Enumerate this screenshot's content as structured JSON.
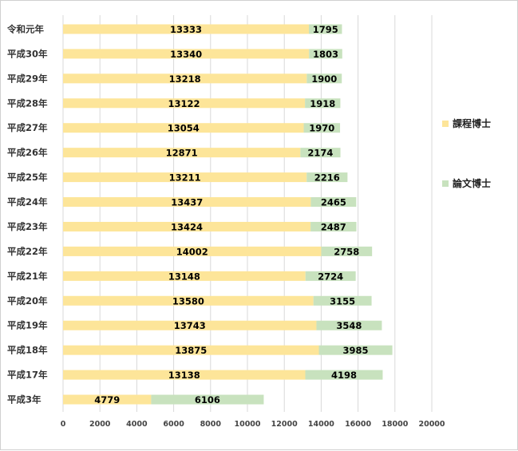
{
  "chart_data": {
    "type": "bar",
    "orientation": "horizontal",
    "stacked": true,
    "categories": [
      "令和元年",
      "平成30年",
      "平成29年",
      "平成28年",
      "平成27年",
      "平成26年",
      "平成25年",
      "平成24年",
      "平成23年",
      "平成22年",
      "平成21年",
      "平成20年",
      "平成19年",
      "平成18年",
      "平成17年",
      "平成3年"
    ],
    "series": [
      {
        "name": "課程博士",
        "color": "#FDE599",
        "values": [
          13333,
          13340,
          13218,
          13122,
          13054,
          12871,
          13211,
          13437,
          13424,
          14002,
          13148,
          13580,
          13743,
          13875,
          13138,
          4779
        ]
      },
      {
        "name": "論文博士",
        "color": "#C8E2BE",
        "values": [
          1795,
          1803,
          1900,
          1918,
          1970,
          2174,
          2216,
          2465,
          2487,
          2758,
          2724,
          3155,
          3548,
          3985,
          4198,
          6106
        ]
      }
    ],
    "xlim": [
      0,
      20000
    ],
    "xticks": [
      "0",
      "2000",
      "4000",
      "6000",
      "8000",
      "10000",
      "12000",
      "14000",
      "16000",
      "18000",
      "20000"
    ],
    "grid": true,
    "legend_position": "right",
    "title": "",
    "xlabel": "",
    "ylabel": ""
  }
}
